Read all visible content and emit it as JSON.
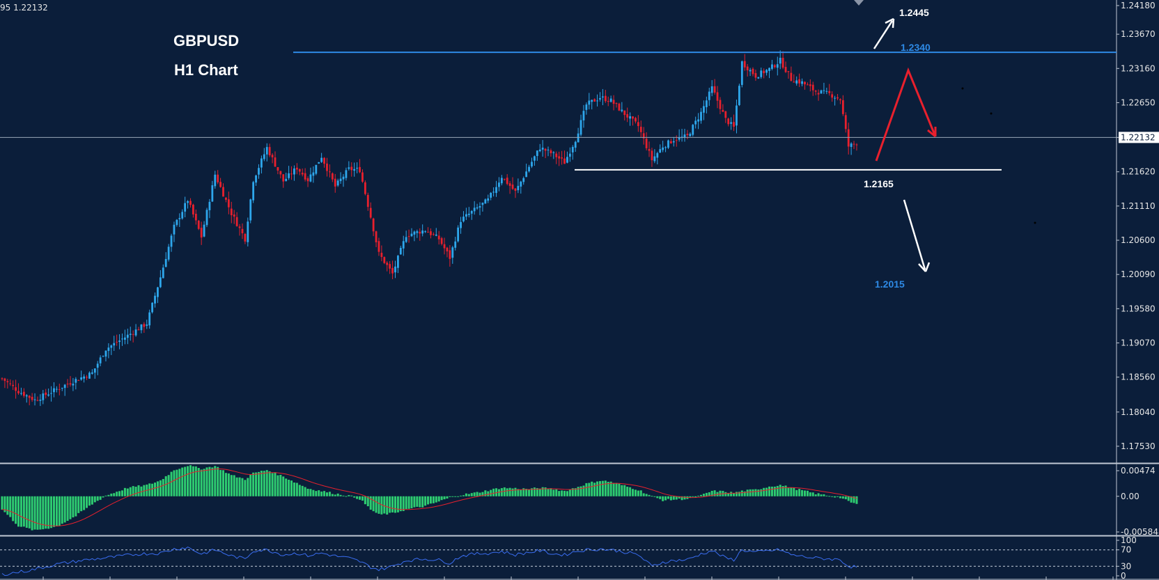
{
  "colors": {
    "background": "#0b1e3a",
    "axis_panel": "#0b1e3a",
    "grid_text": "#e6e6e6",
    "bull": "#2ea7ec",
    "bear": "#e8202d",
    "macd_hist": "#2ecc71",
    "macd_signal": "#e8202d",
    "rsi_line": "#3a6df0",
    "resistance_line": "#2e8ae6",
    "support_line": "#ffffff",
    "current_line": "#9aa7b8",
    "title_text": "#ffffff",
    "label_blue": "#2e8ae6"
  },
  "header": {
    "symbol_price": "95 1.22132"
  },
  "title": {
    "line1": "GBPUSD",
    "line2": "H1 Chart"
  },
  "chart_data": [
    {
      "type": "candlestick",
      "symbol": "GBPUSD",
      "timeframe": "H1",
      "ylim": [
        1.1728,
        1.2418
      ],
      "y_ticks": [
        "1.24180",
        "1.23670",
        "1.23160",
        "1.22650",
        "1.22132",
        "1.21620",
        "1.21110",
        "1.20600",
        "1.20090",
        "1.19580",
        "1.19070",
        "1.18560",
        "1.18040",
        "1.17530"
      ],
      "current_price": "1.22132",
      "anchors": [
        [
          0,
          1.1854
        ],
        [
          6,
          1.1835
        ],
        [
          12,
          1.1822
        ],
        [
          20,
          1.1838
        ],
        [
          27,
          1.1852
        ],
        [
          33,
          1.1862
        ],
        [
          38,
          1.1898
        ],
        [
          46,
          1.1918
        ],
        [
          53,
          1.1936
        ],
        [
          58,
          1.2005
        ],
        [
          63,
          1.208
        ],
        [
          68,
          1.212
        ],
        [
          73,
          1.2065
        ],
        [
          78,
          1.2158
        ],
        [
          84,
          1.21
        ],
        [
          89,
          1.2062
        ],
        [
          92,
          1.215
        ],
        [
          97,
          1.2198
        ],
        [
          103,
          1.2148
        ],
        [
          108,
          1.2168
        ],
        [
          112,
          1.215
        ],
        [
          117,
          1.2185
        ],
        [
          122,
          1.214
        ],
        [
          127,
          1.2166
        ],
        [
          131,
          1.2165
        ],
        [
          135,
          1.2095
        ],
        [
          138,
          1.204
        ],
        [
          143,
          1.201
        ],
        [
          148,
          1.2068
        ],
        [
          155,
          1.2075
        ],
        [
          160,
          1.2062
        ],
        [
          164,
          1.2034
        ],
        [
          168,
          1.209
        ],
        [
          173,
          1.2105
        ],
        [
          178,
          1.212
        ],
        [
          183,
          1.2155
        ],
        [
          188,
          1.2132
        ],
        [
          193,
          1.217
        ],
        [
          197,
          1.2198
        ],
        [
          202,
          1.2188
        ],
        [
          206,
          1.2176
        ],
        [
          210,
          1.221
        ],
        [
          214,
          1.2262
        ],
        [
          219,
          1.2273
        ],
        [
          223,
          1.2268
        ],
        [
          227,
          1.2252
        ],
        [
          233,
          1.223
        ],
        [
          238,
          1.218
        ],
        [
          242,
          1.22
        ],
        [
          246,
          1.221
        ],
        [
          251,
          1.2215
        ],
        [
          256,
          1.225
        ],
        [
          260,
          1.2287
        ],
        [
          265,
          1.224
        ],
        [
          268,
          1.2228
        ],
        [
          271,
          1.2325
        ],
        [
          276,
          1.2305
        ],
        [
          281,
          1.2315
        ],
        [
          285,
          1.2328
        ],
        [
          289,
          1.23
        ],
        [
          293,
          1.2295
        ],
        [
          298,
          1.2282
        ],
        [
          303,
          1.2278
        ],
        [
          307,
          1.227
        ],
        [
          310,
          1.22
        ],
        [
          313,
          1.2205
        ]
      ],
      "annotations": {
        "resistance": "1.2340",
        "support": "1.2165",
        "target_up": "1.2445",
        "target_down": "1.2015"
      },
      "resistance_value": 1.234,
      "support_value": 1.2165
    },
    {
      "type": "histogram",
      "name": "MACD",
      "ylim": [
        -0.005848,
        0.00474
      ],
      "y_ticks": [
        "0.00474",
        "0.00",
        "-0.005848"
      ],
      "anchors": [
        [
          0,
          -0.002
        ],
        [
          6,
          -0.0045
        ],
        [
          12,
          -0.0052
        ],
        [
          20,
          -0.0046
        ],
        [
          27,
          -0.003
        ],
        [
          33,
          -0.0012
        ],
        [
          38,
          0.0001
        ],
        [
          46,
          0.0013
        ],
        [
          53,
          0.0017
        ],
        [
          58,
          0.0024
        ],
        [
          63,
          0.004
        ],
        [
          68,
          0.0047
        ],
        [
          73,
          0.0042
        ],
        [
          78,
          0.0046
        ],
        [
          84,
          0.0032
        ],
        [
          89,
          0.0026
        ],
        [
          92,
          0.0035
        ],
        [
          97,
          0.004
        ],
        [
          103,
          0.003
        ],
        [
          108,
          0.002
        ],
        [
          112,
          0.0012
        ],
        [
          117,
          0.0008
        ],
        [
          122,
          0.0004
        ],
        [
          127,
          0.0001
        ],
        [
          131,
          -0.0004
        ],
        [
          135,
          -0.002
        ],
        [
          138,
          -0.0028
        ],
        [
          143,
          -0.0026
        ],
        [
          148,
          -0.002
        ],
        [
          155,
          -0.0015
        ],
        [
          160,
          -0.0008
        ],
        [
          164,
          -0.0002
        ],
        [
          168,
          0.0002
        ],
        [
          173,
          0.0005
        ],
        [
          178,
          0.0009
        ],
        [
          183,
          0.0013
        ],
        [
          188,
          0.0012
        ],
        [
          193,
          0.0011
        ],
        [
          197,
          0.0013
        ],
        [
          202,
          0.0011
        ],
        [
          206,
          0.0008
        ],
        [
          210,
          0.0013
        ],
        [
          214,
          0.0019
        ],
        [
          219,
          0.0024
        ],
        [
          223,
          0.0022
        ],
        [
          227,
          0.0017
        ],
        [
          233,
          0.001
        ],
        [
          238,
          0.0
        ],
        [
          242,
          -0.0006
        ],
        [
          246,
          -0.0005
        ],
        [
          251,
          -0.0004
        ],
        [
          256,
          0.0001
        ],
        [
          260,
          0.0008
        ],
        [
          265,
          0.0007
        ],
        [
          268,
          0.0005
        ],
        [
          271,
          0.0008
        ],
        [
          276,
          0.001
        ],
        [
          281,
          0.0015
        ],
        [
          285,
          0.0017
        ],
        [
          289,
          0.0013
        ],
        [
          293,
          0.0009
        ],
        [
          298,
          0.0004
        ],
        [
          303,
          0.0001
        ],
        [
          307,
          -0.0002
        ],
        [
          310,
          -0.0008
        ],
        [
          313,
          -0.0012
        ]
      ]
    },
    {
      "type": "line",
      "name": "RSI",
      "ylim": [
        0,
        100
      ],
      "y_ticks": [
        "100",
        "70",
        "30",
        "0"
      ],
      "levels": [
        70,
        30
      ],
      "anchors": [
        [
          0,
          10
        ],
        [
          10,
          20
        ],
        [
          20,
          35
        ],
        [
          30,
          45
        ],
        [
          40,
          52
        ],
        [
          50,
          60
        ],
        [
          58,
          62
        ],
        [
          63,
          72
        ],
        [
          68,
          76
        ],
        [
          73,
          60
        ],
        [
          78,
          70
        ],
        [
          84,
          55
        ],
        [
          89,
          48
        ],
        [
          92,
          68
        ],
        [
          97,
          70
        ],
        [
          103,
          58
        ],
        [
          108,
          62
        ],
        [
          112,
          56
        ],
        [
          117,
          62
        ],
        [
          122,
          55
        ],
        [
          127,
          50
        ],
        [
          131,
          42
        ],
        [
          135,
          28
        ],
        [
          138,
          22
        ],
        [
          143,
          30
        ],
        [
          148,
          44
        ],
        [
          155,
          48
        ],
        [
          160,
          45
        ],
        [
          164,
          38
        ],
        [
          168,
          55
        ],
        [
          173,
          60
        ],
        [
          178,
          62
        ],
        [
          183,
          66
        ],
        [
          188,
          58
        ],
        [
          193,
          64
        ],
        [
          197,
          68
        ],
        [
          202,
          60
        ],
        [
          206,
          58
        ],
        [
          210,
          66
        ],
        [
          214,
          70
        ],
        [
          219,
          72
        ],
        [
          223,
          70
        ],
        [
          227,
          66
        ],
        [
          233,
          58
        ],
        [
          238,
          30
        ],
        [
          242,
          40
        ],
        [
          246,
          44
        ],
        [
          251,
          46
        ],
        [
          256,
          60
        ],
        [
          260,
          68
        ],
        [
          265,
          50
        ],
        [
          268,
          46
        ],
        [
          271,
          70
        ],
        [
          276,
          64
        ],
        [
          281,
          68
        ],
        [
          285,
          70
        ],
        [
          289,
          58
        ],
        [
          293,
          54
        ],
        [
          298,
          50
        ],
        [
          303,
          48
        ],
        [
          307,
          46
        ],
        [
          310,
          30
        ],
        [
          313,
          28
        ]
      ]
    }
  ]
}
